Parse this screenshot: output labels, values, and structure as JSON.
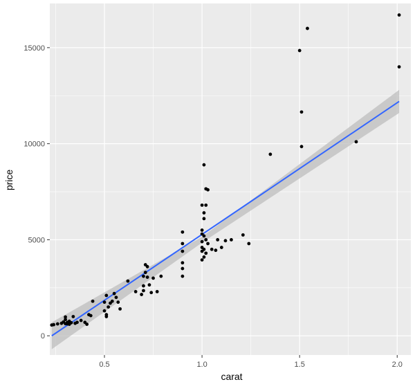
{
  "chart_data": {
    "type": "scatter",
    "title": "",
    "xlabel": "carat",
    "ylabel": "price",
    "xlim": [
      0.22,
      2.07
    ],
    "ylim": [
      -1000,
      17300
    ],
    "x_ticks": [
      0.5,
      1.0,
      1.5,
      2.0
    ],
    "x_tick_labels": [
      "0.5",
      "1.0",
      "1.5",
      "2.0"
    ],
    "y_ticks": [
      0,
      5000,
      10000,
      15000
    ],
    "y_tick_labels": [
      "0",
      "5000",
      "10000",
      "15000"
    ],
    "grid": true,
    "legend": "none",
    "points": [
      {
        "x": 0.23,
        "y": 560
      },
      {
        "x": 0.24,
        "y": 580
      },
      {
        "x": 0.26,
        "y": 620
      },
      {
        "x": 0.28,
        "y": 650
      },
      {
        "x": 0.29,
        "y": 720
      },
      {
        "x": 0.3,
        "y": 850
      },
      {
        "x": 0.3,
        "y": 980
      },
      {
        "x": 0.3,
        "y": 630
      },
      {
        "x": 0.31,
        "y": 700
      },
      {
        "x": 0.31,
        "y": 620
      },
      {
        "x": 0.32,
        "y": 760
      },
      {
        "x": 0.32,
        "y": 600
      },
      {
        "x": 0.33,
        "y": 680
      },
      {
        "x": 0.34,
        "y": 1000
      },
      {
        "x": 0.35,
        "y": 650
      },
      {
        "x": 0.36,
        "y": 700
      },
      {
        "x": 0.38,
        "y": 800
      },
      {
        "x": 0.4,
        "y": 700
      },
      {
        "x": 0.41,
        "y": 600
      },
      {
        "x": 0.42,
        "y": 1100
      },
      {
        "x": 0.43,
        "y": 1050
      },
      {
        "x": 0.44,
        "y": 1800
      },
      {
        "x": 0.5,
        "y": 1750
      },
      {
        "x": 0.5,
        "y": 1300
      },
      {
        "x": 0.51,
        "y": 2100
      },
      {
        "x": 0.51,
        "y": 1100
      },
      {
        "x": 0.51,
        "y": 1000
      },
      {
        "x": 0.52,
        "y": 1500
      },
      {
        "x": 0.53,
        "y": 1700
      },
      {
        "x": 0.54,
        "y": 1800
      },
      {
        "x": 0.55,
        "y": 2200
      },
      {
        "x": 0.56,
        "y": 2000
      },
      {
        "x": 0.57,
        "y": 1750
      },
      {
        "x": 0.58,
        "y": 1400
      },
      {
        "x": 0.62,
        "y": 2850
      },
      {
        "x": 0.66,
        "y": 2300
      },
      {
        "x": 0.69,
        "y": 2150
      },
      {
        "x": 0.7,
        "y": 2600
      },
      {
        "x": 0.7,
        "y": 3100
      },
      {
        "x": 0.7,
        "y": 2350
      },
      {
        "x": 0.71,
        "y": 3700
      },
      {
        "x": 0.71,
        "y": 3300
      },
      {
        "x": 0.72,
        "y": 3050
      },
      {
        "x": 0.72,
        "y": 3600
      },
      {
        "x": 0.73,
        "y": 2650
      },
      {
        "x": 0.74,
        "y": 2250
      },
      {
        "x": 0.75,
        "y": 3000
      },
      {
        "x": 0.77,
        "y": 2300
      },
      {
        "x": 0.79,
        "y": 3100
      },
      {
        "x": 0.9,
        "y": 5400
      },
      {
        "x": 0.9,
        "y": 4800
      },
      {
        "x": 0.9,
        "y": 4400
      },
      {
        "x": 0.9,
        "y": 3800
      },
      {
        "x": 0.9,
        "y": 3500
      },
      {
        "x": 0.9,
        "y": 3100
      },
      {
        "x": 1.0,
        "y": 6800
      },
      {
        "x": 1.0,
        "y": 5500
      },
      {
        "x": 1.0,
        "y": 5300
      },
      {
        "x": 1.0,
        "y": 4900
      },
      {
        "x": 1.0,
        "y": 4600
      },
      {
        "x": 1.0,
        "y": 4400
      },
      {
        "x": 1.0,
        "y": 3950
      },
      {
        "x": 1.01,
        "y": 8900
      },
      {
        "x": 1.01,
        "y": 6400
      },
      {
        "x": 1.01,
        "y": 6100
      },
      {
        "x": 1.01,
        "y": 5200
      },
      {
        "x": 1.01,
        "y": 4500
      },
      {
        "x": 1.01,
        "y": 4100
      },
      {
        "x": 1.02,
        "y": 7650
      },
      {
        "x": 1.02,
        "y": 6800
      },
      {
        "x": 1.02,
        "y": 5000
      },
      {
        "x": 1.02,
        "y": 4300
      },
      {
        "x": 1.03,
        "y": 7600
      },
      {
        "x": 1.03,
        "y": 4800
      },
      {
        "x": 1.05,
        "y": 4500
      },
      {
        "x": 1.07,
        "y": 4450
      },
      {
        "x": 1.08,
        "y": 5000
      },
      {
        "x": 1.1,
        "y": 4600
      },
      {
        "x": 1.12,
        "y": 4950
      },
      {
        "x": 1.15,
        "y": 5000
      },
      {
        "x": 1.21,
        "y": 5250
      },
      {
        "x": 1.24,
        "y": 4800
      },
      {
        "x": 1.35,
        "y": 9450
      },
      {
        "x": 1.5,
        "y": 14850
      },
      {
        "x": 1.51,
        "y": 11650
      },
      {
        "x": 1.51,
        "y": 9850
      },
      {
        "x": 1.54,
        "y": 16000
      },
      {
        "x": 1.79,
        "y": 10100
      },
      {
        "x": 2.01,
        "y": 16700
      },
      {
        "x": 2.01,
        "y": 14000
      }
    ],
    "trend_line": {
      "method": "lm",
      "x": [
        0.23,
        2.01
      ],
      "y": [
        0,
        12200
      ],
      "se_band": [
        {
          "x": 0.23,
          "lo": -700,
          "hi": 700
        },
        {
          "x": 1.0,
          "lo": 4850,
          "hi": 5150
        },
        {
          "x": 2.01,
          "lo": 11600,
          "hi": 12800
        }
      ]
    },
    "colors": {
      "panel_bg": "#ebebeb",
      "grid": "#ffffff",
      "points": "#000000",
      "trend": "#3366ff",
      "band": "#bebebe",
      "text": "#4d4d4d",
      "title_text": "#000000"
    }
  }
}
